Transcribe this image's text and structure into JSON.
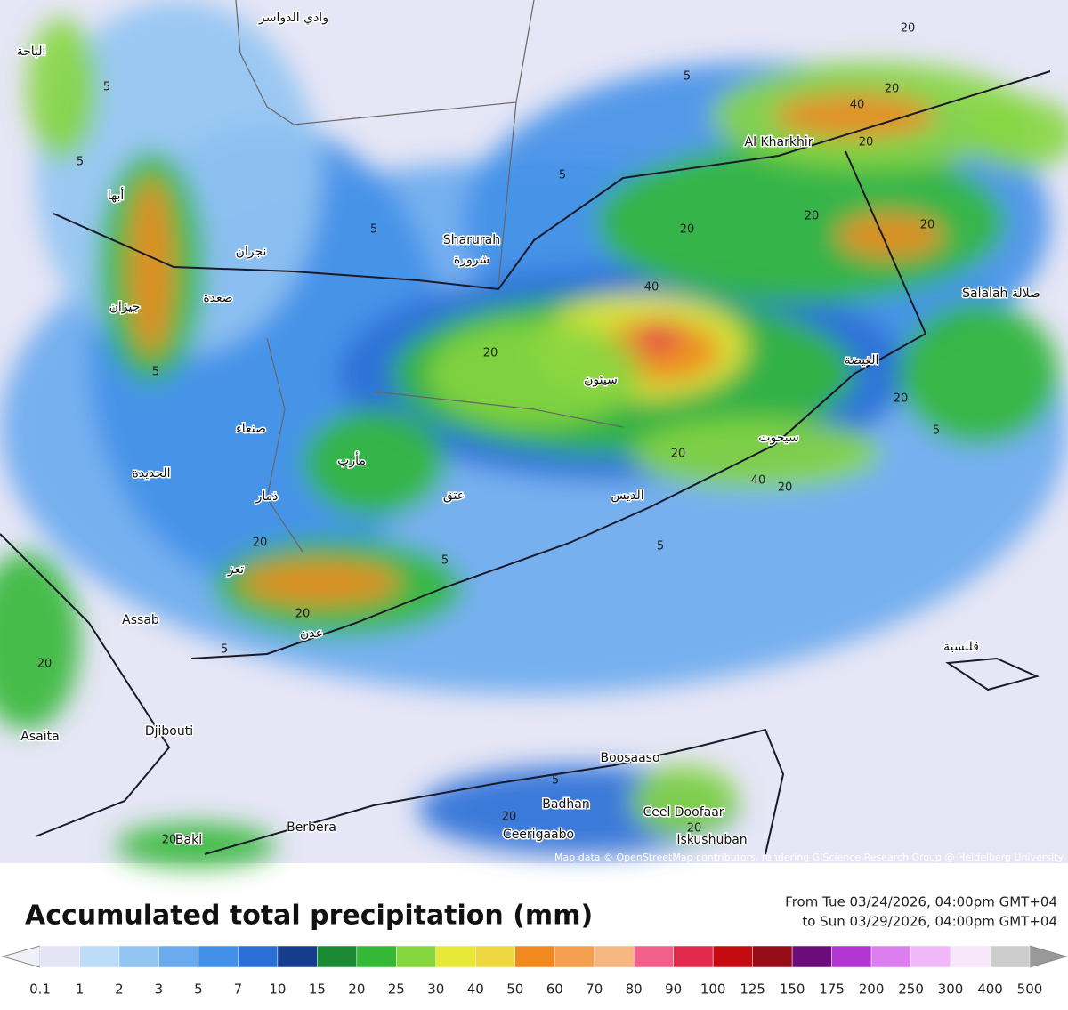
{
  "map": {
    "places": [
      "وادي الدواسر",
      "الباحة",
      "أبها",
      "نجران",
      "Sharurah",
      "شرورة",
      "صعدة",
      "جيزان",
      "Al Kharkhir",
      "Salalah صلالة",
      "الغيضة",
      "سيئون",
      "عتق",
      "مأرب",
      "صنعاء",
      "الحديدة",
      "ذمار",
      "تعز",
      "عدن",
      "الديس",
      "سيحوت",
      "Assab",
      "قلنسية",
      "Djibouti",
      "Asaita",
      "Boosaaso",
      "Badhan",
      "Ceel Doofaar",
      "Ceerigaabo",
      "Iskushuban",
      "Berbera",
      "Baki"
    ],
    "contour_labels": [
      5,
      5,
      5,
      5,
      5,
      5,
      5,
      5,
      5,
      5,
      5,
      20,
      20,
      20,
      20,
      20,
      20,
      20,
      20,
      20,
      20,
      20,
      20,
      20,
      20,
      20,
      20,
      40,
      40,
      40
    ],
    "attribution": "Map data © OpenStreetMap contributors, rendering GIScience Research Group @ Heidelberg University"
  },
  "legend": {
    "title": "Accumulated total precipitation (mm)",
    "period_from": "From Tue 03/24/2026, 04:00pm GMT+04",
    "period_to": "to Sun 03/29/2026, 04:00pm GMT+04",
    "ticks": [
      0.1,
      1,
      2,
      3,
      5,
      7,
      10,
      15,
      20,
      25,
      30,
      40,
      50,
      60,
      70,
      80,
      90,
      100,
      125,
      150,
      175,
      200,
      250,
      300,
      400,
      500
    ],
    "colors": [
      "#e4e4f6",
      "#bcdcf8",
      "#92c4f2",
      "#6aaaee",
      "#4290e8",
      "#2a6fd6",
      "#163c8e",
      "#1c8a34",
      "#34b836",
      "#86d640",
      "#e8e838",
      "#eed640",
      "#f08a20",
      "#f4a050",
      "#f6b880",
      "#f0608a",
      "#e22a4c",
      "#c40c10",
      "#940c18",
      "#6c0c7a",
      "#b436d2",
      "#dc7ef0",
      "#f0b8f6",
      "#f8e6fa",
      "#cccccc"
    ]
  }
}
